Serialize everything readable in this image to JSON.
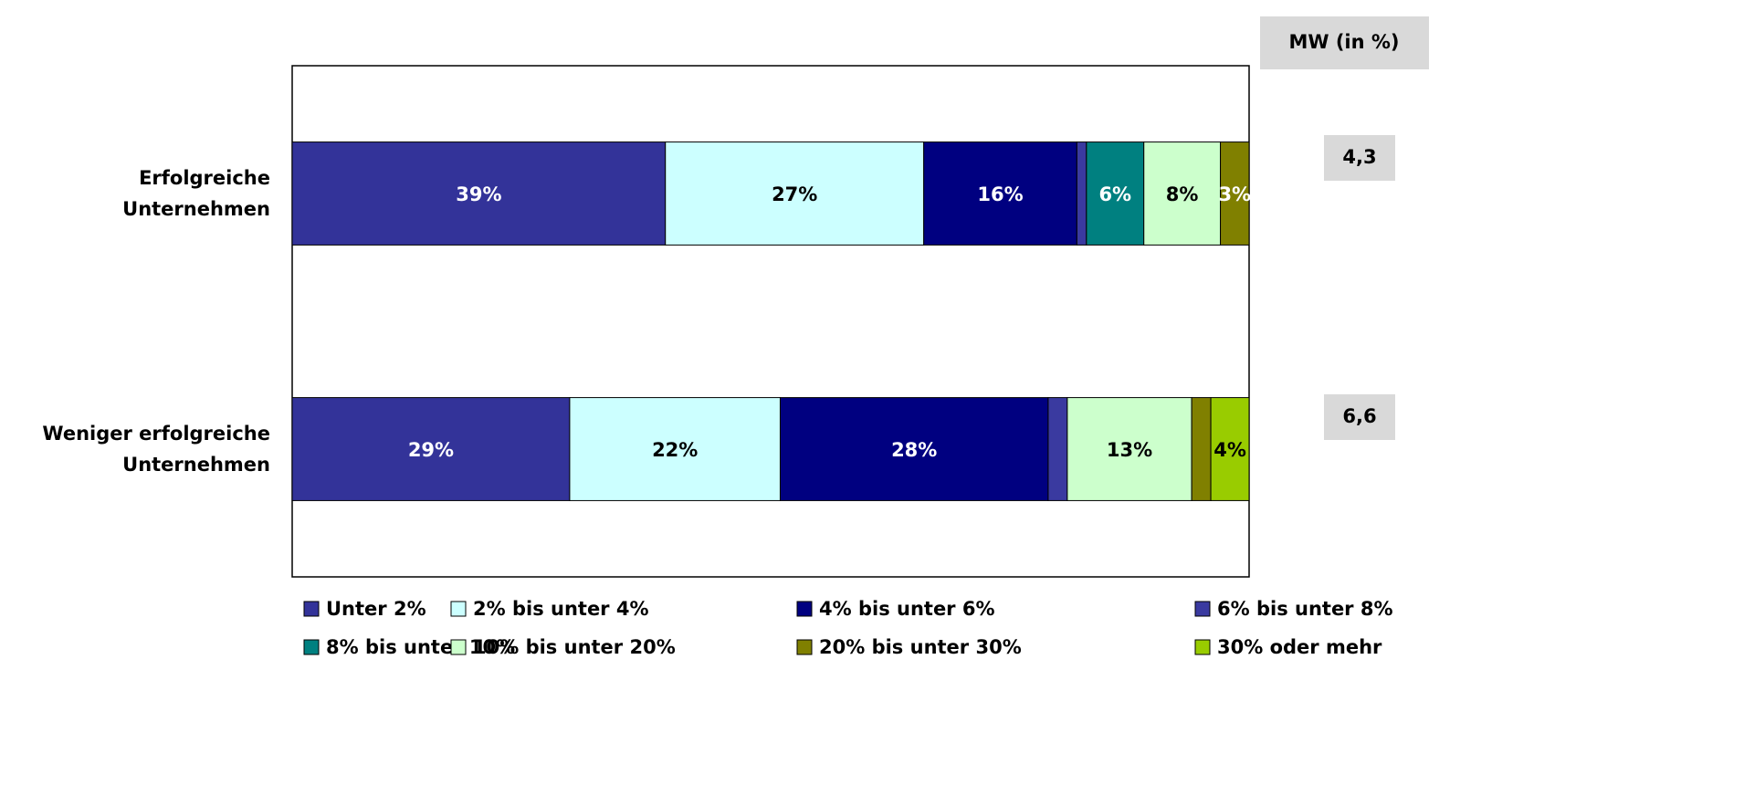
{
  "chart_data": {
    "type": "stacked_barh",
    "categories": [
      "Erfolgreiche\nUnternehmen",
      "Weniger erfolgreiche\nUnternehmen"
    ],
    "xlim": [
      0,
      100
    ],
    "series": [
      {
        "name": "Unter 2%",
        "color": "#333399",
        "values": [
          39,
          29
        ],
        "value_labels": [
          "39%",
          "29%"
        ]
      },
      {
        "name": "2% bis unter 4%",
        "color": "#ccffff",
        "values": [
          27,
          22
        ],
        "value_labels": [
          "27%",
          "22%"
        ]
      },
      {
        "name": "4% bis unter 6%",
        "color": "#000080",
        "values": [
          16,
          28
        ],
        "value_labels": [
          "16%",
          "28%"
        ]
      },
      {
        "name": "6% bis unter 8%",
        "color": "#3a3aa0",
        "values": [
          1,
          2
        ],
        "value_labels": [
          null,
          null
        ]
      },
      {
        "name": "8% bis unter 10%",
        "color": "#008080",
        "values": [
          6,
          0
        ],
        "value_labels": [
          "6%",
          null
        ]
      },
      {
        "name": "10% bis unter 20%",
        "color": "#ccffcc",
        "values": [
          8,
          13
        ],
        "value_labels": [
          "8%",
          "13%"
        ]
      },
      {
        "name": "20% bis unter 30%",
        "color": "#808000",
        "values": [
          3,
          2
        ],
        "value_labels": [
          "3%",
          null
        ]
      },
      {
        "name": "30% oder mehr",
        "color": "#99cc00",
        "values": [
          0,
          4
        ],
        "value_labels": [
          null,
          "4%"
        ]
      }
    ],
    "mean_title": "MW (in %)",
    "mean_labels": [
      "4,3",
      "6,6"
    ]
  }
}
